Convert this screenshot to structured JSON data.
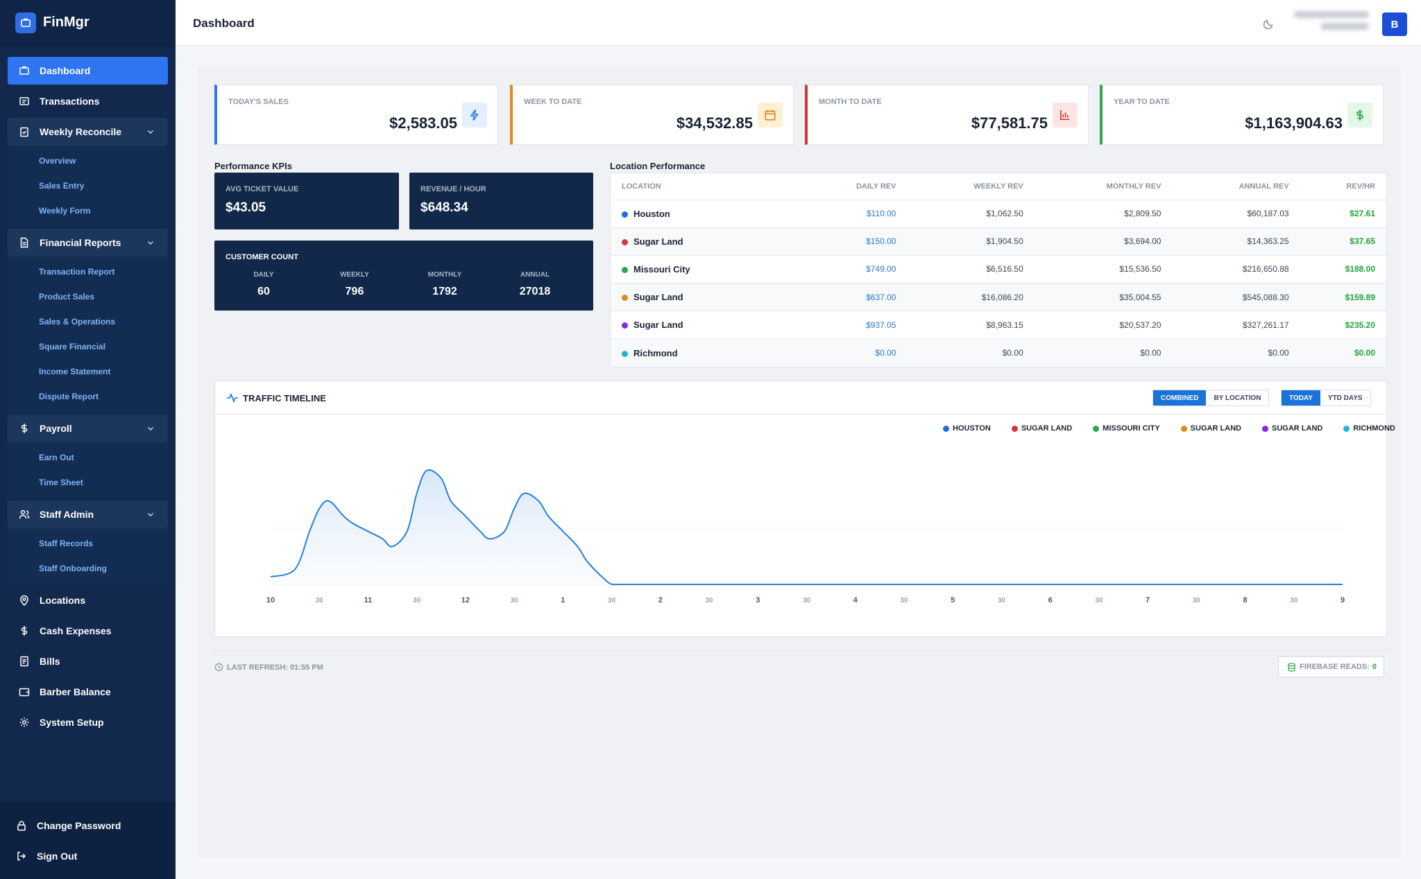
{
  "app": {
    "name": "FinMgr"
  },
  "header": {
    "title": "Dashboard",
    "avatar_letter": "B"
  },
  "sidebar": {
    "items": [
      {
        "label": "Dashboard",
        "icon": "briefcase-icon",
        "active": true
      },
      {
        "label": "Transactions",
        "icon": "receipt-icon"
      },
      {
        "label": "Weekly Reconcile",
        "icon": "clipboard-check-icon",
        "children": [
          "Overview",
          "Sales Entry",
          "Weekly Form"
        ]
      },
      {
        "label": "Financial Reports",
        "icon": "document-icon",
        "children": [
          "Transaction Report",
          "Product Sales",
          "Sales & Operations",
          "Square Financial",
          "Income Statement",
          "Dispute Report"
        ]
      },
      {
        "label": "Payroll",
        "icon": "dollar-icon",
        "children": [
          "Earn Out",
          "Time Sheet"
        ]
      },
      {
        "label": "Staff Admin",
        "icon": "users-icon",
        "children": [
          "Staff Records",
          "Staff Onboarding"
        ]
      },
      {
        "label": "Locations",
        "icon": "map-pin-icon"
      },
      {
        "label": "Cash Expenses",
        "icon": "dollar-icon"
      },
      {
        "label": "Bills",
        "icon": "bill-icon"
      },
      {
        "label": "Barber Balance",
        "icon": "wallet-icon"
      },
      {
        "label": "System Setup",
        "icon": "gear-icon"
      }
    ],
    "bottom": [
      {
        "label": "Change Password",
        "icon": "lock-icon"
      },
      {
        "label": "Sign Out",
        "icon": "sign-out-icon"
      }
    ]
  },
  "stats": [
    {
      "label": "TODAY'S SALES",
      "value": "$2,583.05",
      "accent": "#2f74f0",
      "icon": "bolt-icon",
      "icon_bg": "#e4efff",
      "icon_color": "#2f74f0"
    },
    {
      "label": "WEEK TO DATE",
      "value": "$34,532.85",
      "accent": "#e08a1e",
      "icon": "calendar-icon",
      "icon_bg": "#fdf0d5",
      "icon_color": "#e08a1e"
    },
    {
      "label": "MONTH TO DATE",
      "value": "$77,581.75",
      "accent": "#d43838",
      "icon": "bar-chart-icon",
      "icon_bg": "#fde5e5",
      "icon_color": "#d43838"
    },
    {
      "label": "YEAR TO DATE",
      "value": "$1,163,904.63",
      "accent": "#2aa84a",
      "icon": "dollar-icon",
      "icon_bg": "#e3f6e8",
      "icon_color": "#2aa84a"
    }
  ],
  "kpis": {
    "section_label": "Performance KPIs",
    "avg_ticket": {
      "label": "AVG TICKET VALUE",
      "value": "$43.05"
    },
    "rev_hour": {
      "label": "REVENUE / HOUR",
      "value": "$648.34"
    },
    "customer_count": {
      "label": "CUSTOMER COUNT",
      "cols": [
        {
          "label": "DAILY",
          "value": "60"
        },
        {
          "label": "WEEKLY",
          "value": "796"
        },
        {
          "label": "MONTHLY",
          "value": "1792"
        },
        {
          "label": "ANNUAL",
          "value": "27018"
        }
      ]
    }
  },
  "locations": {
    "section_label": "Location Performance",
    "headers": [
      "LOCATION",
      "DAILY REV",
      "WEEKLY REV",
      "MONTHLY REV",
      "ANNUAL REV",
      "REV/HR"
    ],
    "rows": [
      {
        "name": "Houston",
        "color": "#1a73d9",
        "daily": "$110.00",
        "weekly": "$1,062.50",
        "monthly": "$2,809.50",
        "annual": "$60,187.03",
        "rph": "$27.61"
      },
      {
        "name": "Sugar Land",
        "color": "#d43838",
        "daily": "$150.00",
        "weekly": "$1,904.50",
        "monthly": "$3,694.00",
        "annual": "$14,363.25",
        "rph": "$37.65"
      },
      {
        "name": "Missouri City",
        "color": "#2aa84a",
        "daily": "$749.00",
        "weekly": "$6,516.50",
        "monthly": "$15,536.50",
        "annual": "$216,650.88",
        "rph": "$188.00"
      },
      {
        "name": "Sugar Land",
        "color": "#e08a1e",
        "daily": "$637.00",
        "weekly": "$16,086.20",
        "monthly": "$35,004.55",
        "annual": "$545,088.30",
        "rph": "$159.89"
      },
      {
        "name": "Sugar Land",
        "color": "#8a2ad4",
        "daily": "$937.05",
        "weekly": "$8,963.15",
        "monthly": "$20,537.20",
        "annual": "$327,261.17",
        "rph": "$235.20"
      },
      {
        "name": "Richmond",
        "color": "#1fb6d6",
        "daily": "$0.00",
        "weekly": "$0.00",
        "monthly": "$0.00",
        "annual": "$0.00",
        "rph": "$0.00"
      }
    ]
  },
  "traffic": {
    "title": "TRAFFIC TIMELINE",
    "mode_buttons": [
      "COMBINED",
      "BY LOCATION"
    ],
    "range_buttons": [
      "TODAY",
      "YTD DAYS"
    ],
    "legend": [
      {
        "label": "HOUSTON",
        "color": "#1a73d9"
      },
      {
        "label": "SUGAR LAND",
        "color": "#d43838"
      },
      {
        "label": "MISSOURI CITY",
        "color": "#2aa84a"
      },
      {
        "label": "SUGAR LAND",
        "color": "#e08a1e"
      },
      {
        "label": "SUGAR LAND",
        "color": "#8a2ad4"
      },
      {
        "label": "RICHMOND",
        "color": "#1fb6d6"
      }
    ]
  },
  "chart_data": {
    "type": "area",
    "title": "TRAFFIC TIMELINE",
    "x_tick_labels": [
      "10",
      "30",
      "11",
      "30",
      "12",
      "30",
      "1",
      "30",
      "2",
      "30",
      "3",
      "30",
      "4",
      "30",
      "5",
      "30",
      "6",
      "30",
      "7",
      "30",
      "8",
      "30",
      "9"
    ],
    "series": [
      {
        "name": "Combined",
        "color": "#2a7fd6",
        "x_hours": [
          10.0,
          10.25,
          10.4,
          10.5,
          10.6,
          10.75,
          10.85,
          11.0,
          11.15,
          11.25,
          11.4,
          11.5,
          11.6,
          11.75,
          11.85,
          12.0,
          12.15,
          12.25,
          12.4,
          12.5,
          12.6,
          12.75,
          12.85,
          13.0,
          13.15,
          13.25,
          13.4,
          13.5,
          13.6,
          13.75,
          14.0,
          15.0,
          16.0,
          17.0,
          18.0,
          19.0,
          20.0,
          21.0
        ],
        "y": [
          1,
          2,
          7,
          10,
          11,
          9,
          8,
          7,
          6,
          5,
          7,
          12,
          15,
          14,
          11,
          9,
          7,
          6,
          7,
          10,
          12,
          11,
          9,
          7,
          5,
          3,
          1,
          0,
          0,
          0,
          0,
          0,
          0,
          0,
          0,
          0,
          0,
          0
        ]
      }
    ],
    "ylim": [
      0,
      16
    ],
    "grid": true
  },
  "footer": {
    "refresh": "LAST REFRESH: 01:55 PM",
    "reads_label": "FIREBASE READS:",
    "reads_value": "0"
  }
}
